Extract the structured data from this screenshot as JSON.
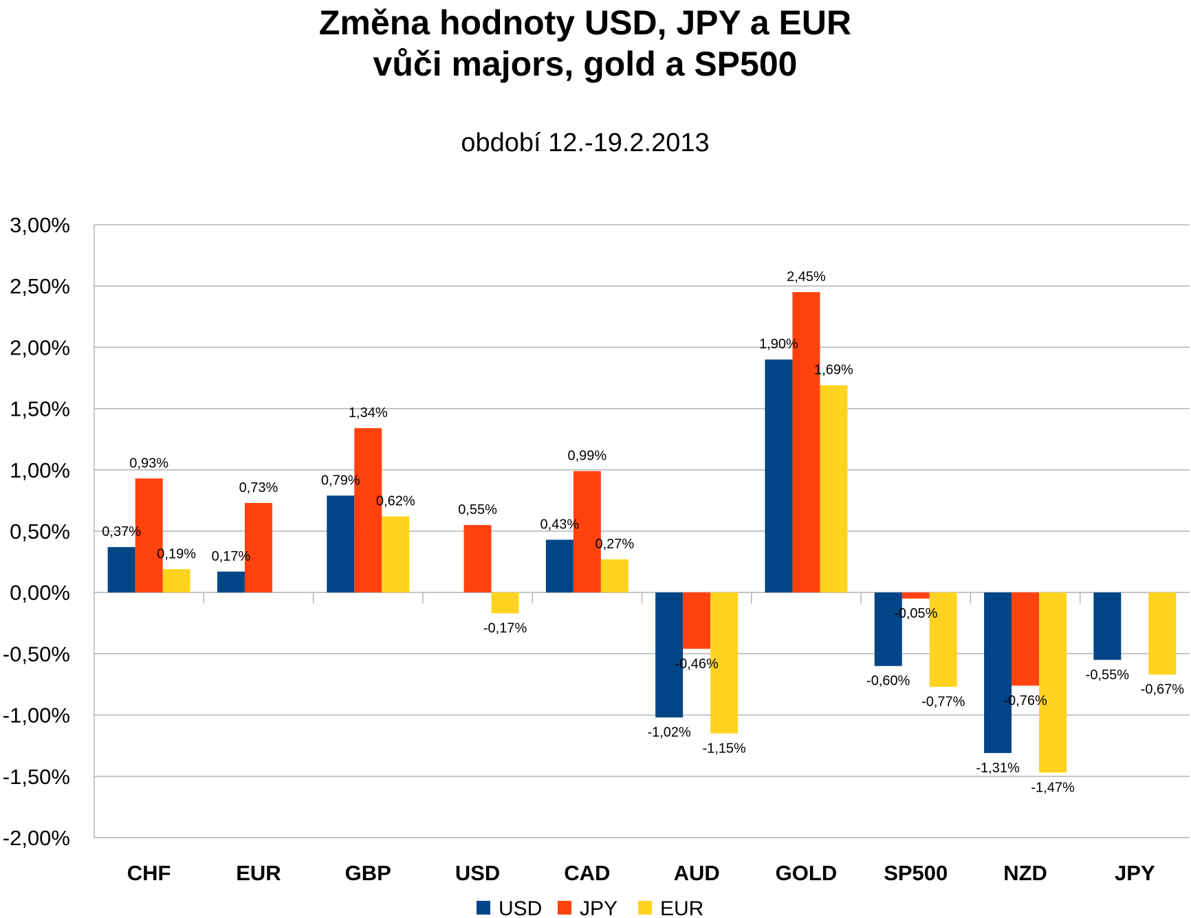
{
  "chart_data": {
    "type": "bar",
    "title_line1": "Změna hodnoty USD, JPY a EUR",
    "title_line2": "vůči majors, gold a SP500",
    "subtitle": "období 12.-19.2.2013",
    "xlabel": "",
    "ylabel": "",
    "ylim": [
      -0.02,
      0.03
    ],
    "yticks": [
      3.0,
      2.5,
      2.0,
      1.5,
      1.0,
      0.5,
      0.0,
      -0.5,
      -1.0,
      -1.5,
      -2.0
    ],
    "ytick_labels": [
      "3,00%",
      "2,50%",
      "2,00%",
      "1,50%",
      "1,00%",
      "0,50%",
      "0,00%",
      "-0,50%",
      "-1,00%",
      "-1,50%",
      "-2,00%"
    ],
    "categories": [
      "CHF",
      "EUR",
      "GBP",
      "USD",
      "CAD",
      "AUD",
      "GOLD",
      "SP500",
      "NZD",
      "JPY"
    ],
    "grid": true,
    "legend_position": "bottom",
    "series": [
      {
        "name": "USD",
        "color": "#004586",
        "values": [
          0.37,
          0.17,
          0.79,
          null,
          0.43,
          -1.02,
          1.9,
          -0.6,
          -1.31,
          -0.55
        ],
        "labels": [
          "0,37%",
          "0,17%",
          "0,79%",
          "",
          "0,43%",
          "-1,02%",
          "1,90%",
          "-0,60%",
          "-1,31%",
          "-0,55%"
        ]
      },
      {
        "name": "JPY",
        "color": "#ff420e",
        "values": [
          0.93,
          0.73,
          1.34,
          0.55,
          0.99,
          -0.46,
          2.45,
          -0.05,
          -0.76,
          null
        ],
        "labels": [
          "0,93%",
          "0,73%",
          "1,34%",
          "0,55%",
          "0,99%",
          "-0,46%",
          "2,45%",
          "-0,05%",
          "-0,76%",
          ""
        ]
      },
      {
        "name": "EUR",
        "color": "#ffd320",
        "values": [
          0.19,
          null,
          0.62,
          -0.17,
          0.27,
          -1.15,
          1.69,
          -0.77,
          -1.47,
          -0.67
        ],
        "labels": [
          "0,19%",
          "",
          "0,62%",
          "-0,17%",
          "0,27%",
          "-1,15%",
          "1,69%",
          "-0,77%",
          "-1,47%",
          "-0,67%"
        ]
      }
    ]
  }
}
